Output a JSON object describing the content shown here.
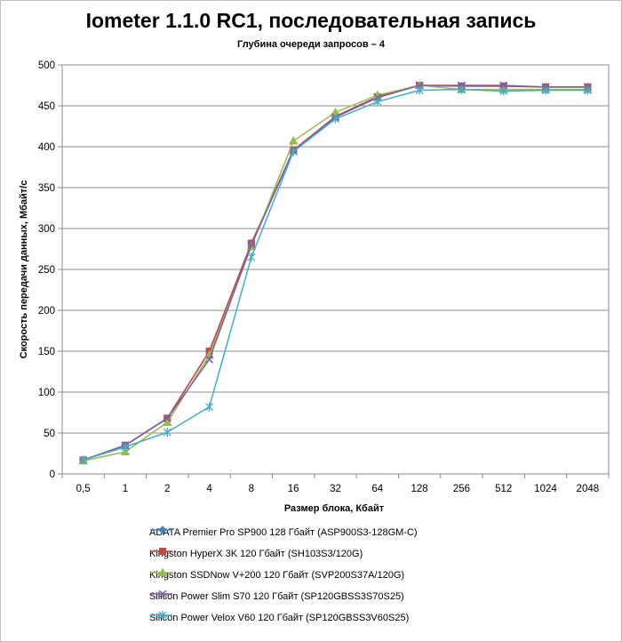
{
  "chart_data": {
    "type": "line",
    "title": "Iometer 1.1.0 RC1, последовательная запись",
    "subtitle": "Глубина очереди запросов – 4",
    "xlabel": "Размер блока, Кбайт",
    "ylabel": "Скорость передачи данных, Мбайт/с",
    "categories": [
      "0,5",
      "1",
      "2",
      "4",
      "8",
      "16",
      "32",
      "64",
      "128",
      "256",
      "512",
      "1024",
      "2048"
    ],
    "ylim": [
      0,
      500
    ],
    "yticks": [
      0,
      50,
      100,
      150,
      200,
      250,
      300,
      350,
      400,
      450,
      500
    ],
    "grid": true,
    "legend_position": "bottom",
    "series": [
      {
        "name": "ADATA  Premier Pro SP900 128 Гбайт (ASP900S3-128GM-C)",
        "color": "#4a7ebb",
        "marker": "diamond",
        "values": [
          17,
          35,
          68,
          150,
          282,
          395,
          437,
          461,
          475,
          474,
          474,
          473,
          473
        ]
      },
      {
        "name": "Kingston HyperX 3K 120 Гбайт (SH103S3/120G)",
        "color": "#be4b48",
        "marker": "square",
        "values": [
          17,
          35,
          68,
          150,
          282,
          396,
          437,
          461,
          475,
          474,
          474,
          473,
          473
        ]
      },
      {
        "name": "Kingston SSDNow  V+200 120 Гбайт (SVP200S37A/120G)",
        "color": "#98b954",
        "marker": "triangle",
        "values": [
          16,
          27,
          63,
          145,
          278,
          407,
          442,
          463,
          475,
          470,
          470,
          470,
          470
        ]
      },
      {
        "name": "Silicon Power Slim S70 120 Гбайт (SP120GBSS3S70S25)",
        "color": "#7d60a0",
        "marker": "x",
        "values": [
          17,
          35,
          68,
          140,
          280,
          395,
          436,
          460,
          475,
          475,
          475,
          473,
          473
        ]
      },
      {
        "name": "Silicon Power Velox V60 120 Гбайт (SP120GBSS3V60S25)",
        "color": "#46aac5",
        "marker": "star",
        "values": [
          17,
          33,
          51,
          82,
          265,
          394,
          434,
          455,
          469,
          470,
          468,
          469,
          469
        ]
      }
    ]
  }
}
